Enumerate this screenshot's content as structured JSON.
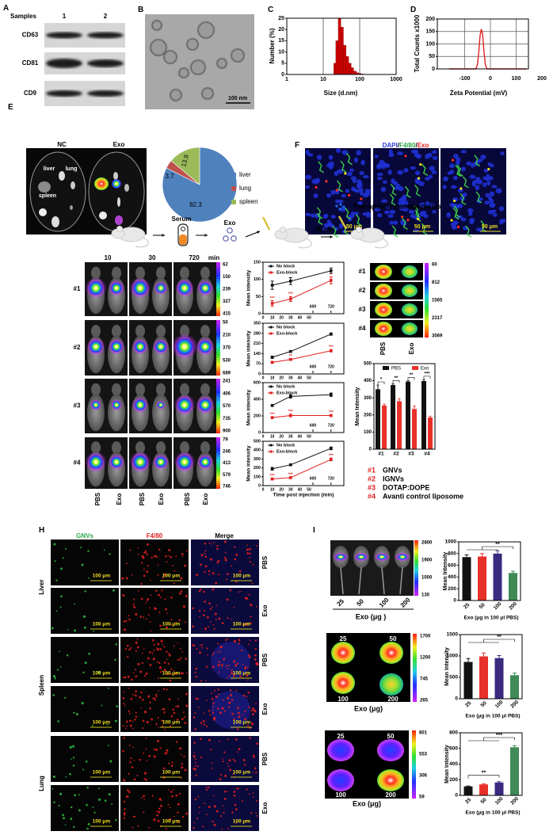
{
  "panels": {
    "A": {
      "label": "A",
      "samples_label": "Samples",
      "lanes": [
        "1",
        "2"
      ],
      "markers": [
        "CD63",
        "CD81",
        "CD9"
      ]
    },
    "B": {
      "label": "B",
      "scale_bar": "100 nm"
    },
    "C": {
      "label": "C"
    },
    "D": {
      "label": "D"
    },
    "E": {
      "label": "E",
      "groups": [
        "NC",
        "Exo"
      ],
      "organ_labels": [
        "liver",
        "lung",
        "spleen"
      ]
    },
    "F": {
      "label": "F",
      "title": [
        {
          "text": "DAPI",
          "color": "#2b3bd6"
        },
        {
          "text": "/",
          "color": "#000000"
        },
        {
          "text": "F4/80",
          "color": "#2ba84a"
        },
        {
          "text": "/",
          "color": "#000000"
        },
        {
          "text": "Exo",
          "color": "#e02020"
        }
      ],
      "scale_bar": "50 μm"
    },
    "G": {
      "label": "G",
      "schematic": {
        "serum": "Serum",
        "exo": "Exo",
        "wait": "30 min",
        "nanoparticles": "Therapeutic nanoparticles"
      },
      "times": [
        "10",
        "30",
        "720"
      ],
      "time_unit": "min",
      "rows": [
        "#1",
        "#2",
        "#3",
        "#4"
      ],
      "colorbars": [
        [
          "62",
          "150",
          "239",
          "327",
          "415"
        ],
        [
          "50",
          "210",
          "370",
          "530",
          "689"
        ],
        [
          "241",
          "406",
          "570",
          "735",
          "900"
        ],
        [
          "79",
          "246",
          "413",
          "579",
          "746"
        ]
      ],
      "groups": [
        "PBS",
        "Exo"
      ],
      "organ_colorbar": [
        "60",
        "812",
        "1565",
        "2317",
        "3069"
      ],
      "legend": [
        {
          "id": "#1",
          "name": "GNVs"
        },
        {
          "id": "#2",
          "name": "IGNVs"
        },
        {
          "id": "#3",
          "name": "DOTAP:DOPE"
        },
        {
          "id": "#4",
          "name": "Avanti control liposome"
        }
      ],
      "legend_id_color": "#e02020"
    },
    "H": {
      "label": "H",
      "columns": [
        {
          "text": "GNVs",
          "color": "#2ba84a"
        },
        {
          "text": "F4/80",
          "color": "#e02020"
        },
        {
          "text": "Merge",
          "color": "#000000"
        }
      ],
      "organs": [
        "Liver",
        "Spleen",
        "Lung"
      ],
      "conditions": [
        "PBS",
        "Exo"
      ],
      "scale_bar": "100 μm"
    },
    "I": {
      "label": "I",
      "doses": [
        "25",
        "50",
        "100",
        "200"
      ],
      "image_xlabel_1": "Exo (μg )",
      "image_xlabel": "Exo (μg)",
      "colorbars": [
        [
          "2800",
          "1900",
          "1000",
          "130"
        ],
        [
          "1700",
          "1200",
          "745",
          "265"
        ],
        [
          "801",
          "553",
          "306",
          "59"
        ]
      ]
    }
  },
  "chart_data": [
    {
      "id": "C",
      "type": "bar",
      "xlabel": "Size (d.nm)",
      "ylabel": "Number (%)",
      "xscale": "log",
      "xlim": [
        1,
        1000
      ],
      "ylim": [
        0,
        25
      ],
      "xticks": [
        "1",
        "10",
        "100",
        "1000"
      ],
      "yticks": [
        "0",
        "5",
        "10",
        "15",
        "20",
        "25"
      ],
      "grid": "vertical",
      "color": "#cc0000",
      "x": [
        21,
        24,
        28,
        33,
        39,
        46,
        54,
        63,
        74,
        87,
        102,
        120
      ],
      "values": [
        5,
        15,
        25,
        21,
        13,
        8,
        5,
        3,
        1.5,
        0.8,
        0.4,
        0.2
      ]
    },
    {
      "id": "D",
      "type": "line",
      "xlabel": "Zeta Potential (mV)",
      "ylabel": "Total Counts x1000",
      "xlim": [
        -205,
        150
      ],
      "ylim": [
        0,
        200
      ],
      "xticks": [
        "-100",
        "0",
        "100",
        "200"
      ],
      "yticks": [
        "0",
        "50",
        "100",
        "150",
        "200"
      ],
      "grid": true,
      "color": "#e02020",
      "x": [
        -160,
        -60,
        -55,
        -50,
        -45,
        -40,
        -35,
        -30,
        -25,
        -20,
        -15,
        -10,
        140
      ],
      "y": [
        0,
        0,
        3,
        20,
        70,
        135,
        160,
        135,
        70,
        20,
        3,
        0,
        0
      ]
    },
    {
      "id": "E",
      "type": "pie",
      "labels": [
        "liver",
        "lung",
        "spleen"
      ],
      "values": [
        82.3,
        3.7,
        13.9
      ],
      "value_labels": [
        "82.3",
        "3.7",
        "13.9"
      ],
      "colors": [
        "#4f81bd",
        "#c0504d",
        "#9bbb59"
      ],
      "legend": "right"
    },
    {
      "id": "G1",
      "type": "line",
      "ylabel": "Mean intensity",
      "xlabel": "",
      "x": [
        10,
        30,
        720
      ],
      "xticks": [
        "0",
        "10",
        "20",
        "30",
        "40",
        "50",
        "600",
        "720"
      ],
      "ylim": [
        0,
        150
      ],
      "yticks": [
        "0",
        "50",
        "100",
        "150"
      ],
      "legend": "top-left",
      "series": [
        {
          "name": "No block",
          "color": "#111111",
          "values": [
            83,
            95,
            125
          ],
          "err": [
            12,
            10,
            8
          ]
        },
        {
          "name": "Exo-block",
          "color": "#e02020",
          "values": [
            30,
            43,
            97
          ],
          "err": [
            8,
            7,
            10
          ],
          "sig": [
            "***",
            "***",
            "*"
          ]
        }
      ]
    },
    {
      "id": "G2",
      "type": "line",
      "ylabel": "Mean intensity",
      "xlabel": "",
      "x": [
        10,
        30,
        720
      ],
      "xticks": [
        "0",
        "10",
        "20",
        "30",
        "40",
        "50",
        "600",
        "720"
      ],
      "ylim": [
        0,
        350
      ],
      "yticks": [
        "0",
        "70",
        "140",
        "210",
        "280",
        "350"
      ],
      "legend": "top-left",
      "series": [
        {
          "name": "No block",
          "color": "#111111",
          "values": [
            115,
            155,
            275
          ],
          "err": [
            8,
            5,
            8
          ]
        },
        {
          "name": "Exo-block",
          "color": "#e02020",
          "values": [
            80,
            100,
            160
          ],
          "err": [
            5,
            5,
            8
          ],
          "sig": [
            "",
            "**",
            "***"
          ]
        }
      ]
    },
    {
      "id": "G3",
      "type": "line",
      "ylabel": "Mean intensity",
      "xlabel": "",
      "x": [
        10,
        30,
        720
      ],
      "xticks": [
        "0",
        "10",
        "20",
        "30",
        "40",
        "50",
        "600",
        "720"
      ],
      "ylim": [
        0,
        600
      ],
      "yticks": [
        "0",
        "200",
        "400",
        "600"
      ],
      "legend": "top-left",
      "series": [
        {
          "name": "No block",
          "color": "#111111",
          "values": [
            325,
            435,
            455
          ],
          "err": [
            10,
            20,
            20
          ]
        },
        {
          "name": "Exo-block",
          "color": "#e02020",
          "values": [
            180,
            205,
            205
          ],
          "err": [
            10,
            15,
            10
          ],
          "sig": [
            "***",
            "***",
            "***"
          ]
        }
      ]
    },
    {
      "id": "G4",
      "type": "line",
      "ylabel": "Mean intensity",
      "xlabel": "Time post injection (min)",
      "x": [
        10,
        30,
        720
      ],
      "xticks": [
        "0",
        "10",
        "20",
        "30",
        "40",
        "50",
        "600",
        "720"
      ],
      "ylim": [
        0,
        500
      ],
      "yticks": [
        "0",
        "100",
        "200",
        "300",
        "400",
        "500"
      ],
      "legend": "top-left",
      "series": [
        {
          "name": "No block",
          "color": "#111111",
          "values": [
            190,
            235,
            420
          ],
          "err": [
            15,
            10,
            15
          ]
        },
        {
          "name": "Exo-block",
          "color": "#e02020",
          "values": [
            75,
            90,
            295
          ],
          "err": [
            10,
            8,
            15
          ],
          "sig": [
            "***",
            "***",
            "***"
          ]
        }
      ]
    },
    {
      "id": "G-bar",
      "type": "bar",
      "ylabel": "Mean Intensity",
      "categories": [
        "#1",
        "#2",
        "#3",
        "#4"
      ],
      "ylim": [
        0,
        500
      ],
      "yticks": [
        "0",
        "100",
        "200",
        "300",
        "400",
        "500"
      ],
      "legend": "top",
      "series": [
        {
          "name": "PBS",
          "color": "#111111",
          "values": [
            350,
            375,
            395,
            398
          ],
          "err": [
            25,
            8,
            5,
            10
          ]
        },
        {
          "name": "Exo",
          "color": "#e8302a",
          "values": [
            255,
            280,
            235,
            185
          ],
          "err": [
            8,
            15,
            18,
            8
          ]
        }
      ],
      "sig": [
        "*",
        "**",
        "**",
        "***"
      ]
    },
    {
      "id": "I1",
      "type": "bar",
      "ylabel": "Mean Intensity",
      "xlabel": "Exo (μg in 100 μl PBS)",
      "categories": [
        "25",
        "50",
        "100",
        "200"
      ],
      "ylim": [
        0,
        1000
      ],
      "yticks": [
        "0",
        "200",
        "400",
        "600",
        "800",
        "1000"
      ],
      "values": [
        740,
        750,
        800,
        470
      ],
      "err": [
        40,
        50,
        50,
        30
      ],
      "colors": [
        "#111111",
        "#e8302a",
        "#3a2a80",
        "#3f8a55"
      ],
      "sig": [
        {
          "text": "**",
          "from": [
            0,
            2
          ],
          "to": 3
        }
      ]
    },
    {
      "id": "I2",
      "type": "bar",
      "ylabel": "Mean Intensity",
      "xlabel": "Exo (μg in 100 μl PBS)",
      "categories": [
        "25",
        "50",
        "100",
        "200"
      ],
      "ylim": [
        0,
        1500
      ],
      "yticks": [
        "0",
        "500",
        "1000",
        "1500"
      ],
      "values": [
        860,
        990,
        950,
        550
      ],
      "err": [
        80,
        80,
        60,
        50
      ],
      "colors": [
        "#111111",
        "#e8302a",
        "#3a2a80",
        "#3f8a55"
      ],
      "sig": [
        {
          "text": "**",
          "from": [
            0,
            2
          ],
          "to": 3
        }
      ]
    },
    {
      "id": "I3",
      "type": "bar",
      "ylabel": "Mean Intensity",
      "xlabel": "Exo (μg in 100 μl PBS)",
      "categories": [
        "25",
        "50",
        "100",
        "200"
      ],
      "ylim": [
        0,
        800
      ],
      "yticks": [
        "0",
        "200",
        "400",
        "600",
        "800"
      ],
      "values": [
        115,
        140,
        165,
        615
      ],
      "err": [
        5,
        8,
        10,
        20
      ],
      "colors": [
        "#111111",
        "#e8302a",
        "#3a2a80",
        "#3f8a55"
      ],
      "sig": [
        {
          "text": "***",
          "from": [
            0,
            2
          ],
          "to": 3
        },
        {
          "text": "**",
          "from": [
            0,
            0
          ],
          "to": 2
        }
      ]
    }
  ]
}
